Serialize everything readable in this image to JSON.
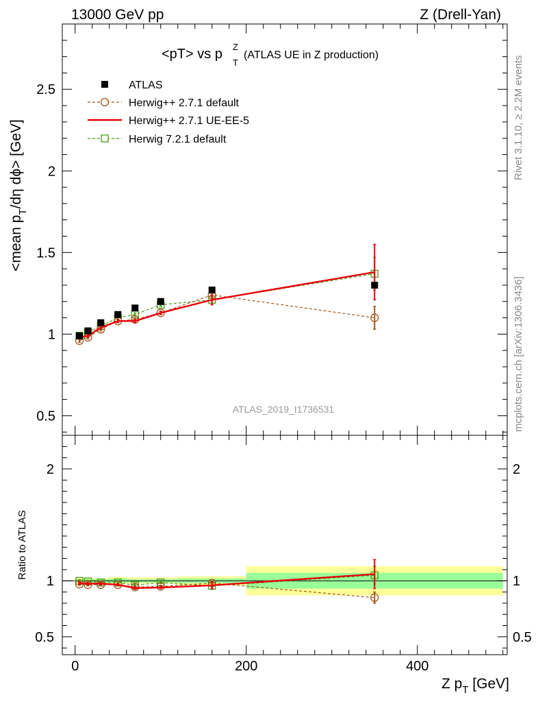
{
  "header": {
    "left": "13000 GeV pp",
    "right": "Z (Drell-Yan)"
  },
  "side_text": {
    "rivet": "Rivet 3.1.10, ≥ 2.2M events",
    "mcplots": "mcplots.cern.ch [arXiv:1306.3436]"
  },
  "chart_data": [
    {
      "type": "scatter",
      "title_main": "<pT> vs p",
      "title_sup": "Z",
      "title_sub": "T",
      "title_rest": "(ATLAS UE in Z production)",
      "ylabel_a": "<mean p",
      "ylabel_sub": "T",
      "ylabel_b": "/dη dϕ> [GeV]",
      "watermark": "ATLAS_2019_I1736531",
      "xlim": [
        -15,
        505
      ],
      "ylim": [
        0.38,
        2.9
      ],
      "yticks": [
        0.5,
        1,
        1.5,
        2,
        2.5
      ],
      "ytick_labels": [
        "0.5",
        "1",
        "1.5",
        "2",
        "2.5"
      ],
      "legend_position": "top-left",
      "series": [
        {
          "name": "ATLAS",
          "x": [
            5,
            15,
            30,
            50,
            70,
            100,
            160,
            350
          ],
          "y": [
            0.99,
            1.02,
            1.07,
            1.12,
            1.16,
            1.2,
            1.27,
            1.3
          ],
          "color": "#000000",
          "marker": "filled-square",
          "line": "none"
        },
        {
          "name": "Herwig++ 2.7.1 default",
          "x": [
            5,
            15,
            30,
            50,
            70,
            100,
            160,
            350
          ],
          "y": [
            0.96,
            0.98,
            1.03,
            1.08,
            1.09,
            1.13,
            1.24,
            1.1
          ],
          "err": [
            0.01,
            0.01,
            0.01,
            0.01,
            0.01,
            0.01,
            0.02,
            0.07
          ],
          "color": "#a0561a",
          "marker": "open-circle",
          "line": "dashed"
        },
        {
          "name": "Herwig++ 2.7.1 UE-EE-5",
          "x": [
            5,
            15,
            30,
            50,
            70,
            100,
            160,
            350
          ],
          "y": [
            0.98,
            0.99,
            1.04,
            1.08,
            1.08,
            1.13,
            1.21,
            1.38
          ],
          "err": [
            0.01,
            0.01,
            0.01,
            0.01,
            0.01,
            0.01,
            0.03,
            0.17
          ],
          "color": "#e8000b",
          "marker": "none",
          "line": "solid"
        },
        {
          "name": "Herwig 7.2.1 default",
          "x": [
            5,
            15,
            30,
            50,
            70,
            100,
            160,
            350
          ],
          "y": [
            0.99,
            1.01,
            1.05,
            1.1,
            1.12,
            1.18,
            1.21,
            1.37
          ],
          "err": [
            0.01,
            0.01,
            0.01,
            0.01,
            0.01,
            0.01,
            0.03,
            0.1
          ],
          "color": "#4a9a18",
          "marker": "open-square",
          "line": "dashed"
        }
      ]
    },
    {
      "type": "scatter",
      "ylabel": "Ratio to ATLAS",
      "xlabel_a": "Z p",
      "xlabel_sub": "T",
      "xlabel_b": " [GeV]",
      "xlim": [
        -15,
        505
      ],
      "ylim": [
        0.34,
        2.3
      ],
      "xticks": [
        0,
        200,
        400
      ],
      "xtick_labels": [
        "0",
        "200",
        "400"
      ],
      "yticks": [
        0.5,
        1,
        2
      ],
      "ytick_labels": [
        "0.5",
        "1",
        "2"
      ],
      "uncertainty_bands": {
        "inner_color": "#99ff99",
        "outer_color": "#ffff99",
        "bins": [
          {
            "x": [
              0,
              10
            ],
            "inner": [
              0.985,
              1.015
            ],
            "outer": [
              0.975,
              1.025
            ]
          },
          {
            "x": [
              10,
              20
            ],
            "inner": [
              0.985,
              1.015
            ],
            "outer": [
              0.975,
              1.025
            ]
          },
          {
            "x": [
              20,
              40
            ],
            "inner": [
              0.985,
              1.015
            ],
            "outer": [
              0.975,
              1.025
            ]
          },
          {
            "x": [
              40,
              60
            ],
            "inner": [
              0.98,
              1.02
            ],
            "outer": [
              0.97,
              1.035
            ]
          },
          {
            "x": [
              60,
              80
            ],
            "inner": [
              0.985,
              1.015
            ],
            "outer": [
              0.975,
              1.03
            ]
          },
          {
            "x": [
              80,
              120
            ],
            "inner": [
              0.985,
              1.015
            ],
            "outer": [
              0.975,
              1.03
            ]
          },
          {
            "x": [
              120,
              200
            ],
            "inner": [
              0.98,
              1.02
            ],
            "outer": [
              0.96,
              1.04
            ]
          },
          {
            "x": [
              200,
              500
            ],
            "inner": [
              0.93,
              1.07
            ],
            "outer": [
              0.87,
              1.13
            ]
          }
        ]
      },
      "series": [
        {
          "name": "Herwig++ 2.7.1 default",
          "x": [
            5,
            15,
            30,
            50,
            70,
            100,
            160,
            350
          ],
          "y": [
            0.97,
            0.965,
            0.965,
            0.965,
            0.945,
            0.95,
            0.98,
            0.85
          ],
          "err": [
            0.01,
            0.01,
            0.01,
            0.01,
            0.01,
            0.01,
            0.02,
            0.05
          ],
          "color": "#a0561a",
          "marker": "open-circle",
          "line": "dashed"
        },
        {
          "name": "Herwig++ 2.7.1 UE-EE-5",
          "x": [
            5,
            15,
            30,
            50,
            70,
            100,
            160,
            350
          ],
          "y": [
            0.98,
            0.975,
            0.975,
            0.965,
            0.935,
            0.94,
            0.96,
            1.06
          ],
          "err": [
            0.01,
            0.01,
            0.01,
            0.01,
            0.01,
            0.01,
            0.03,
            0.13
          ],
          "color": "#e8000b",
          "marker": "none",
          "line": "solid"
        },
        {
          "name": "Herwig 7.2.1 default",
          "x": [
            5,
            15,
            30,
            50,
            70,
            100,
            160,
            350
          ],
          "y": [
            1.0,
            0.995,
            0.985,
            0.985,
            0.96,
            0.985,
            0.955,
            1.05
          ],
          "err": [
            0.01,
            0.01,
            0.01,
            0.01,
            0.01,
            0.01,
            0.03,
            0.08
          ],
          "color": "#4a9a18",
          "marker": "open-square",
          "line": "dashed"
        }
      ]
    }
  ]
}
